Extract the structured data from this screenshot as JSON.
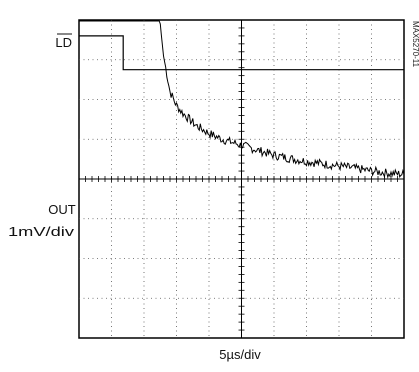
{
  "chart_data": {
    "type": "line",
    "title": "",
    "figure_id": "MAX5270-11",
    "channels": [
      {
        "label": "LD",
        "overbar": true
      },
      {
        "label": "OUT",
        "scale": "1mV/div"
      }
    ],
    "xlabel": "5µs/div",
    "x_divisions": 10,
    "y_divisions": 8,
    "x_range_us": [
      0,
      50
    ],
    "grid": true,
    "series": [
      {
        "name": "LD",
        "units": "div",
        "x_us": [
          0,
          6.8,
          6.8,
          50
        ],
        "y_div": [
          7.6,
          7.6,
          6.75,
          6.75
        ]
      },
      {
        "name": "OUT",
        "units": "mV",
        "x_us": [
          0,
          12.0,
          12.5,
          13.0,
          14.0,
          15.0,
          16.0,
          17.0,
          18.0,
          20.0,
          22.0,
          24.0,
          26.0,
          28.0,
          30.0,
          33.0,
          36.0,
          39.0,
          42.0,
          45.0,
          48.0,
          50.0
        ],
        "y_mV": [
          4.8,
          4.8,
          3.9,
          3.1,
          2.2,
          1.85,
          1.65,
          1.5,
          1.35,
          1.15,
          1.0,
          0.9,
          0.8,
          0.7,
          0.6,
          0.5,
          0.42,
          0.35,
          0.28,
          0.2,
          0.14,
          0.12
        ]
      }
    ]
  }
}
